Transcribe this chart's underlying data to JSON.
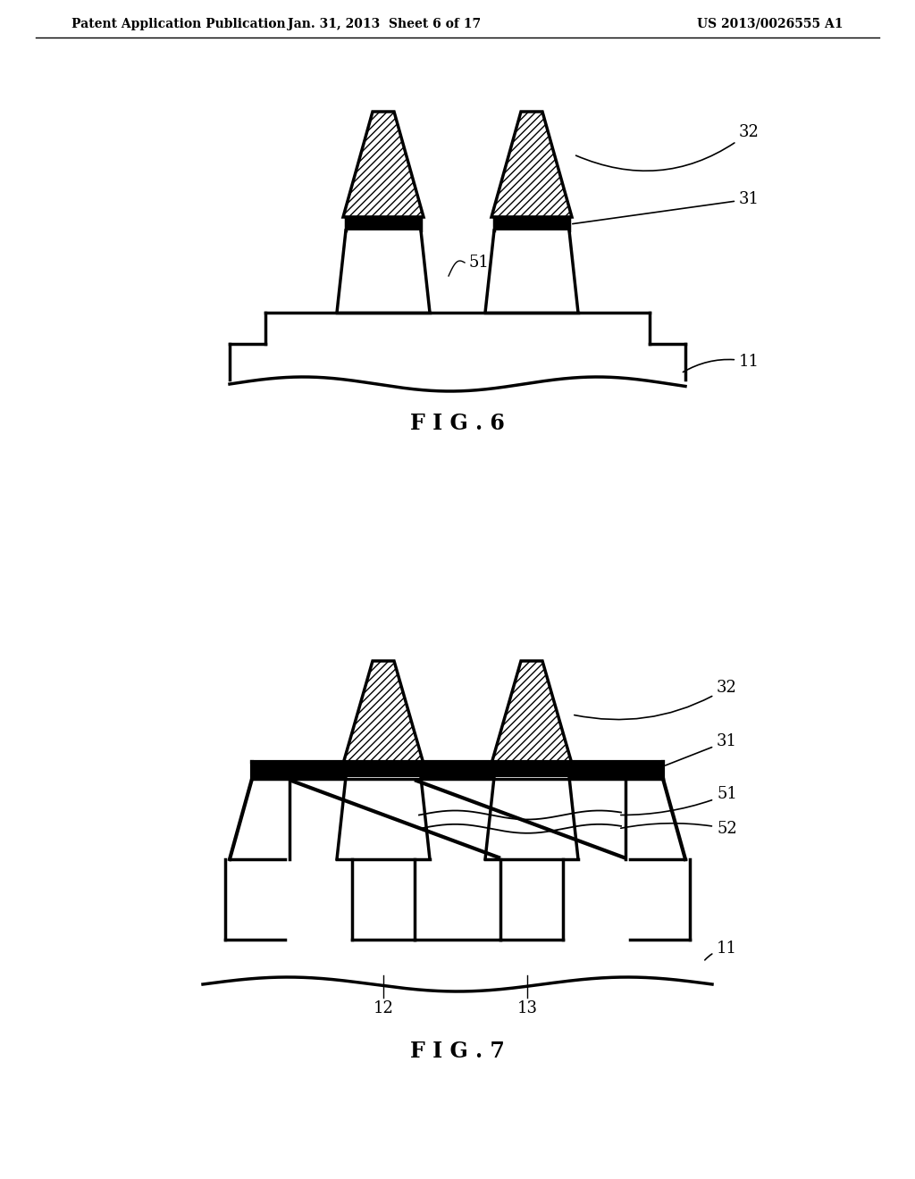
{
  "header_left": "Patent Application Publication",
  "header_center": "Jan. 31, 2013  Sheet 6 of 17",
  "header_right": "US 2013/0026555 A1",
  "fig6_label": "F I G . 6",
  "fig7_label": "F I G . 7",
  "bg_color": "#ffffff",
  "line_color": "#000000"
}
